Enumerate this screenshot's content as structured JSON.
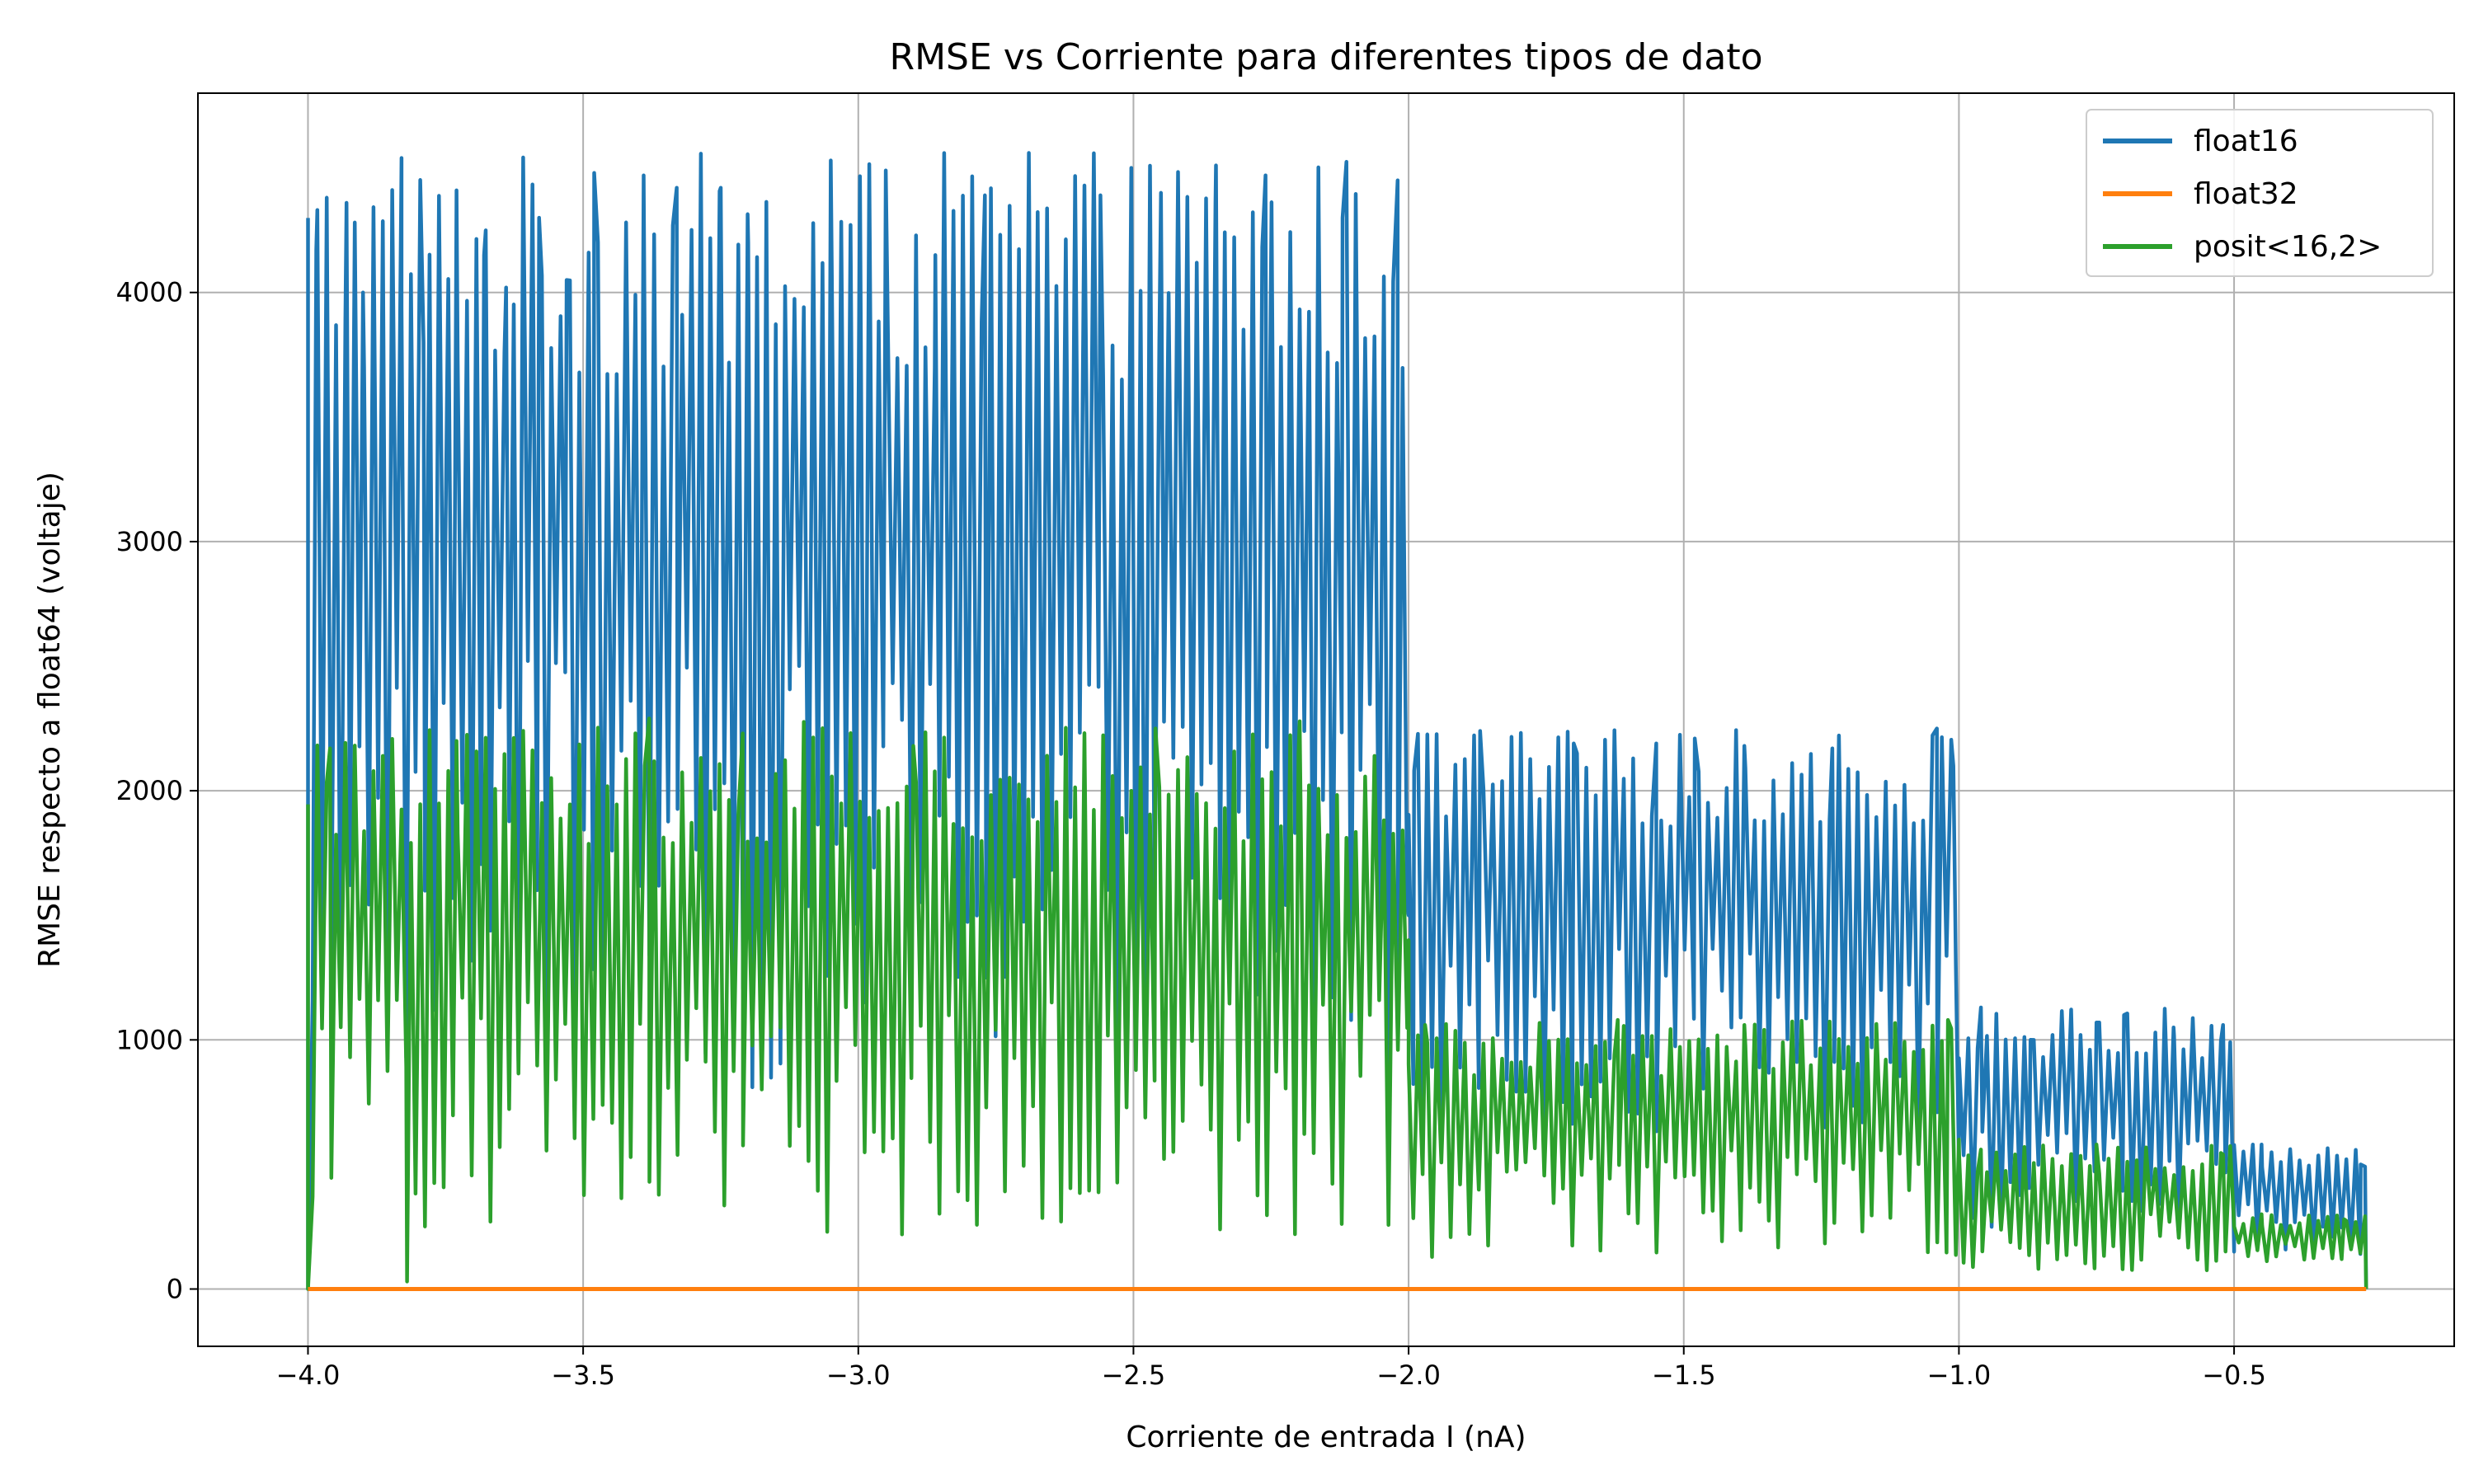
{
  "chart_data": {
    "type": "line",
    "title": "RMSE vs Corriente para diferentes tipos de dato",
    "xlabel": "Corriente de entrada I (nA)",
    "ylabel": "RMSE respecto a float64 (voltaje)",
    "xlim": [
      -4.2,
      -0.1
    ],
    "ylim": [
      -230,
      4800
    ],
    "x_ticks": [
      -4.0,
      -3.5,
      -3.0,
      -2.5,
      -2.0,
      -1.5,
      -1.0,
      -0.5
    ],
    "x_tick_labels": [
      "−4.0",
      "−3.5",
      "−3.0",
      "−2.5",
      "−2.0",
      "−1.5",
      "−1.0",
      "−0.5"
    ],
    "y_ticks": [
      0,
      1000,
      2000,
      3000,
      4000
    ],
    "y_tick_labels": [
      "0",
      "1000",
      "2000",
      "3000",
      "4000"
    ],
    "grid": true,
    "legend_position": "top-right",
    "series": [
      {
        "name": "float16",
        "color": "#1f77b4",
        "description_of_shape": "oscillating",
        "segments": [
          {
            "x_range": [
              -4.0,
              -2.0
            ],
            "low": 500,
            "high": 4560,
            "samples": [
              [
                -4.0,
                0
              ],
              [
                -3.985,
                4170
              ],
              [
                -3.93,
                4360
              ],
              [
                -3.9,
                4000
              ],
              [
                -3.83,
                4540
              ],
              [
                -3.79,
                3800
              ],
              [
                -3.73,
                4410
              ],
              [
                -3.68,
                4150
              ],
              [
                -3.64,
                4020
              ],
              [
                -3.58,
                4300
              ],
              [
                -3.53,
                4050
              ],
              [
                -3.48,
                4480
              ],
              [
                -3.39,
                4470
              ],
              [
                -3.33,
                4420
              ],
              [
                -3.25,
                4420
              ],
              [
                -3.2,
                4200
              ],
              [
                -3.05,
                4530
              ],
              [
                -2.95,
                4490
              ],
              [
                -2.86,
                4150
              ],
              [
                -2.77,
                4390
              ],
              [
                -2.69,
                4560
              ],
              [
                -2.56,
                4390
              ],
              [
                -2.45,
                4400
              ],
              [
                -2.35,
                4510
              ],
              [
                -2.26,
                4470
              ],
              [
                -2.12,
                4300
              ],
              [
                -2.02,
                4450
              ],
              [
                -2.0,
                1500
              ]
            ]
          },
          {
            "x_range": [
              -2.0,
              -1.0
            ],
            "low": 500,
            "high": 2250,
            "samples": [
              [
                -1.99,
                2080
              ],
              [
                -1.87,
                2240
              ],
              [
                -1.7,
                2190
              ],
              [
                -1.55,
                2190
              ],
              [
                -1.48,
                2210
              ],
              [
                -1.39,
                2180
              ],
              [
                -1.23,
                2170
              ],
              [
                -1.04,
                2250
              ],
              [
                -1.01,
                2100
              ],
              [
                -1.0,
                500
              ]
            ]
          },
          {
            "x_range": [
              -1.0,
              -0.5
            ],
            "low": 150,
            "high": 1130,
            "samples": [
              [
                -0.96,
                1130
              ],
              [
                -0.87,
                1000
              ],
              [
                -0.75,
                1070
              ],
              [
                -0.7,
                1100
              ],
              [
                -0.61,
                1050
              ],
              [
                -0.52,
                1060
              ],
              [
                -0.5,
                150
              ]
            ]
          },
          {
            "x_range": [
              -0.5,
              -0.26
            ],
            "low": 100,
            "high": 580,
            "samples": [
              [
                -0.45,
                580
              ],
              [
                -0.4,
                500
              ],
              [
                -0.33,
                560
              ],
              [
                -0.27,
                500
              ],
              [
                -0.26,
                0
              ]
            ]
          }
        ]
      },
      {
        "name": "float32",
        "color": "#ff7f0e",
        "description_of_shape": "flat",
        "segments": [
          {
            "x_range": [
              -4.0,
              -0.26
            ],
            "value": 0
          }
        ]
      },
      {
        "name": "posit<16,2>",
        "color": "#2ca02c",
        "description_of_shape": "oscillating",
        "segments": [
          {
            "x_range": [
              -4.0,
              -2.0
            ],
            "low": 50,
            "high": 2290,
            "samples": [
              [
                -4.0,
                0
              ],
              [
                -3.96,
                2170
              ],
              [
                -3.82,
                30
              ],
              [
                -3.73,
                2200
              ],
              [
                -3.38,
                2290
              ],
              [
                -3.21,
                2230
              ],
              [
                -2.9,
                2180
              ],
              [
                -2.46,
                2250
              ],
              [
                -2.2,
                2150
              ],
              [
                -2.0,
                1400
              ]
            ]
          },
          {
            "x_range": [
              -2.0,
              -1.0
            ],
            "low": 50,
            "high": 1080,
            "samples": [
              [
                -1.97,
                1060
              ],
              [
                -1.62,
                1080
              ],
              [
                -1.39,
                1060
              ],
              [
                -1.02,
                1080
              ],
              [
                -1.0,
                600
              ]
            ]
          },
          {
            "x_range": [
              -1.0,
              -0.5
            ],
            "low": 30,
            "high": 580,
            "samples": [
              [
                -0.96,
                560
              ],
              [
                -0.75,
                580
              ],
              [
                -0.52,
                540
              ]
            ]
          },
          {
            "x_range": [
              -0.5,
              -0.26
            ],
            "low": 80,
            "high": 300,
            "samples": [
              [
                -0.45,
                300
              ],
              [
                -0.3,
                280
              ],
              [
                -0.26,
                0
              ]
            ]
          }
        ]
      }
    ]
  }
}
